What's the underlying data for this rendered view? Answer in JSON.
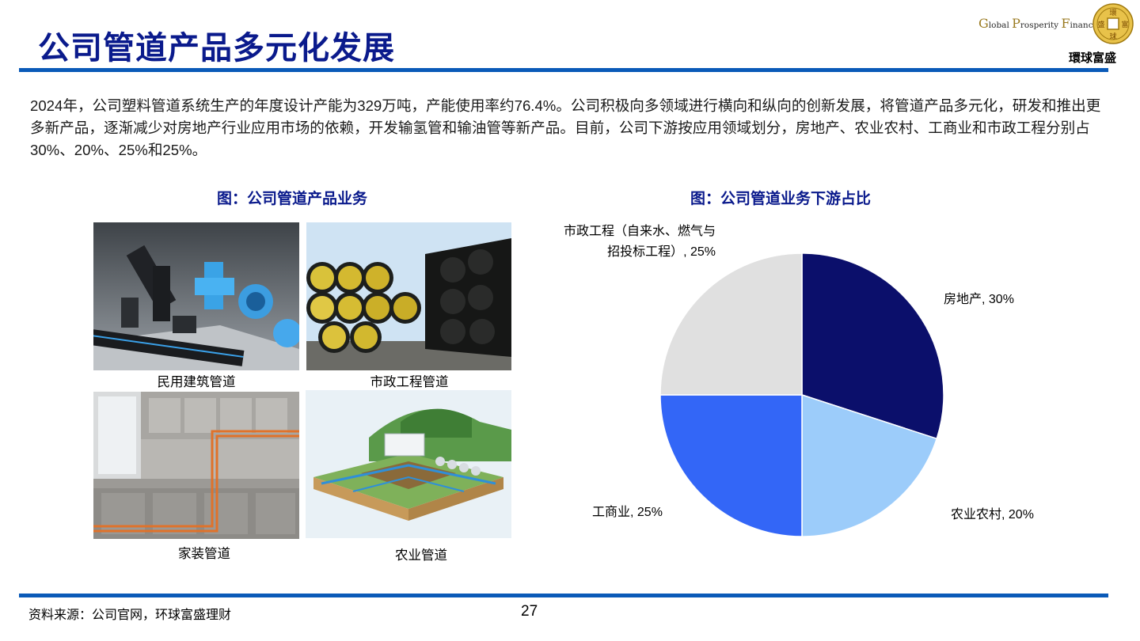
{
  "header": {
    "title": "公司管道产品多元化发展",
    "logo_text_1": "G",
    "logo_text_2": "lobal ",
    "logo_text_3": "P",
    "logo_text_4": "rosperity ",
    "logo_text_5": "F",
    "logo_text_6": "inancial",
    "logo_cn": "環球富盛",
    "coin_chars": [
      "環",
      "富",
      "球",
      "盛"
    ]
  },
  "intro": "2024年，公司塑料管道系统生产的年度设计产能为329万吨，产能使用率约76.4%。公司积极向多领域进行横向和纵向的创新发展，将管道产品多元化，研发和推出更多新产品，逐渐减少对房地产行业应用市场的依赖，开发输氢管和输油管等新产品。目前，公司下游按应用领域划分，房地产、农业农村、工商业和市政工程分别占30%、20%、25%和25%。",
  "left_caption": "图：公司管道产品业务",
  "right_caption": "图：公司管道业务下游占比",
  "photos": [
    {
      "label": "民用建筑管道"
    },
    {
      "label": "市政工程管道"
    },
    {
      "label": "家装管道"
    },
    {
      "label": "农业管道"
    }
  ],
  "chart_data": {
    "type": "pie",
    "title": "图：公司管道业务下游占比",
    "slices": [
      {
        "name": "房地产",
        "value": 30,
        "color": "#0b0f6b",
        "label": "房地产, 30%"
      },
      {
        "name": "农业农村",
        "value": 20,
        "color": "#9cccfa",
        "label": "农业农村, 20%"
      },
      {
        "name": "工商业",
        "value": 25,
        "color": "#3366f7",
        "label": "工商业, 25%"
      },
      {
        "name": "市政工程（自来水、燃气与招投标工程）",
        "value": 25,
        "color": "#e0e0e0",
        "label_line1": "市政工程（自来水、燃气与",
        "label_line2": "招投标工程）, 25%"
      }
    ]
  },
  "footer": {
    "source": "资料来源：公司官网，环球富盛理财",
    "page": "27"
  }
}
